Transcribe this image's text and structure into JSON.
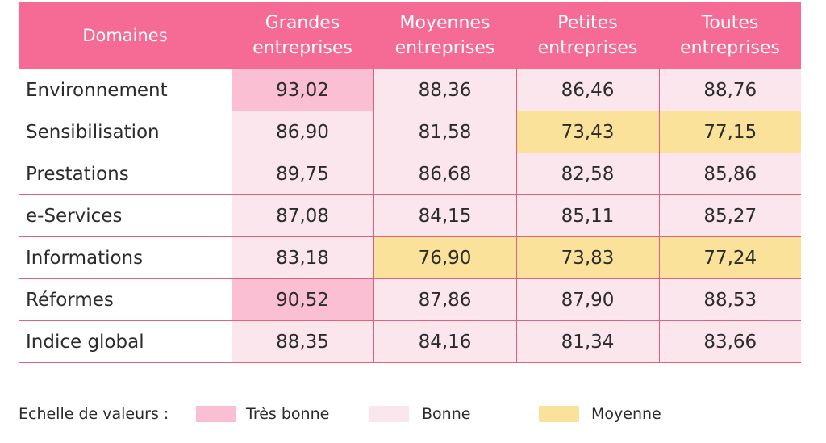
{
  "chart_data": {
    "type": "table",
    "columns": [
      "Domaines",
      "Grandes entreprises",
      "Moyennes entreprises",
      "Petites entreprises",
      "Toutes entreprises"
    ],
    "header_lines": [
      [
        "Domaines"
      ],
      [
        "Grandes",
        "entreprises"
      ],
      [
        "Moyennes",
        "entreprises"
      ],
      [
        "Petites",
        "entreprises"
      ],
      [
        "Toutes",
        "entreprises"
      ]
    ],
    "rows": [
      {
        "domain": "Environnement",
        "values": [
          "93,02",
          "88,36",
          "86,46",
          "88,76"
        ],
        "levels": [
          "tres",
          "bonne",
          "bonne",
          "bonne"
        ]
      },
      {
        "domain": "Sensibilisation",
        "values": [
          "86,90",
          "81,58",
          "73,43",
          "77,15"
        ],
        "levels": [
          "bonne",
          "bonne",
          "moy",
          "moy"
        ]
      },
      {
        "domain": "Prestations",
        "values": [
          "89,75",
          "86,68",
          "82,58",
          "85,86"
        ],
        "levels": [
          "bonne",
          "bonne",
          "bonne",
          "bonne"
        ]
      },
      {
        "domain": "e-Services",
        "values": [
          "87,08",
          "84,15",
          "85,11",
          "85,27"
        ],
        "levels": [
          "bonne",
          "bonne",
          "bonne",
          "bonne"
        ]
      },
      {
        "domain": "Informations",
        "values": [
          "83,18",
          "76,90",
          "73,83",
          "77,24"
        ],
        "levels": [
          "bonne",
          "moy",
          "moy",
          "moy"
        ]
      },
      {
        "domain": "Réformes",
        "values": [
          "90,52",
          "87,86",
          "87,90",
          "88,53"
        ],
        "levels": [
          "tres",
          "bonne",
          "bonne",
          "bonne"
        ]
      },
      {
        "domain": "Indice global",
        "values": [
          "88,35",
          "84,16",
          "81,34",
          "83,66"
        ],
        "levels": [
          "bonne",
          "bonne",
          "bonne",
          "bonne"
        ]
      }
    ],
    "legend": {
      "title": "Echelle de valeurs :",
      "items": [
        {
          "key": "tres",
          "label": "Très bonne",
          "color": "#fbbfd3"
        },
        {
          "key": "bonne",
          "label": "Bonne",
          "color": "#fce6ee"
        },
        {
          "key": "moy",
          "label": "Moyenne",
          "color": "#fae29a"
        }
      ]
    },
    "colors": {
      "header_bg": "#f56b95",
      "header_text": "#ffffff",
      "row_border": "#e0627f"
    }
  }
}
